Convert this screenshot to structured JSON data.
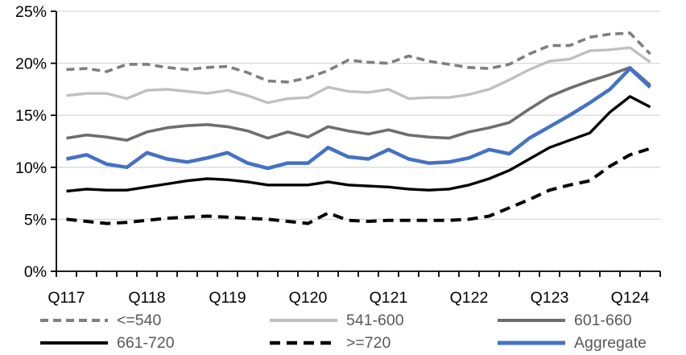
{
  "chart_data": {
    "type": "line",
    "title": "",
    "x_axis": {
      "tick_labels": [
        "Q117",
        "Q118",
        "Q119",
        "Q120",
        "Q121",
        "Q122",
        "Q123",
        "Q124"
      ],
      "label_every": 4,
      "minor_ticks_per_point": 1
    },
    "y_axis": {
      "min": 0,
      "max": 25,
      "step": 5,
      "tick_labels": [
        "0%",
        "5%",
        "10%",
        "15%",
        "20%",
        "25%"
      ],
      "format": "percent"
    },
    "grid": true,
    "legend_position": "bottom",
    "colors": {
      "gridline": "#D9D9D9",
      "axis": "#000000",
      "axis_text": "#000000",
      "legend_text": "#595959",
      "accent_blue": "#4472C4"
    },
    "series": [
      {
        "name": "<=540",
        "color": "#7F7F7F",
        "style": "dashed",
        "width": 3.6,
        "values": [
          19.4,
          19.5,
          19.2,
          19.9,
          19.9,
          19.6,
          19.4,
          19.6,
          19.7,
          19.1,
          18.3,
          18.2,
          18.6,
          19.3,
          20.3,
          20.1,
          20.0,
          20.7,
          20.2,
          19.9,
          19.6,
          19.5,
          19.9,
          20.9,
          21.7,
          21.7,
          22.5,
          22.8,
          22.9,
          20.9
        ]
      },
      {
        "name": "541-600",
        "color": "#C0C0C0",
        "style": "solid",
        "width": 3.4,
        "values": [
          16.9,
          17.1,
          17.1,
          16.6,
          17.4,
          17.5,
          17.3,
          17.1,
          17.4,
          16.9,
          16.2,
          16.6,
          16.7,
          17.7,
          17.3,
          17.2,
          17.5,
          16.6,
          16.7,
          16.7,
          17.0,
          17.5,
          18.4,
          19.4,
          20.2,
          20.4,
          21.2,
          21.3,
          21.5,
          20.1
        ]
      },
      {
        "name": "601-660",
        "color": "#6E6E6E",
        "style": "solid",
        "width": 3.6,
        "values": [
          12.8,
          13.1,
          12.9,
          12.6,
          13.4,
          13.8,
          14.0,
          14.1,
          13.9,
          13.5,
          12.8,
          13.4,
          12.9,
          13.9,
          13.5,
          13.2,
          13.6,
          13.1,
          12.9,
          12.8,
          13.4,
          13.8,
          14.3,
          15.6,
          16.8,
          17.6,
          18.3,
          18.9,
          19.6,
          17.9
        ]
      },
      {
        "name": "661-720",
        "color": "#000000",
        "style": "solid",
        "width": 3.4,
        "values": [
          7.7,
          7.9,
          7.8,
          7.8,
          8.1,
          8.4,
          8.7,
          8.9,
          8.8,
          8.6,
          8.3,
          8.3,
          8.3,
          8.6,
          8.3,
          8.2,
          8.1,
          7.9,
          7.8,
          7.9,
          8.3,
          8.9,
          9.7,
          10.8,
          11.9,
          12.6,
          13.3,
          15.3,
          16.8,
          15.8
        ]
      },
      {
        "name": ">=720",
        "color": "#000000",
        "style": "dashed",
        "width": 4.0,
        "values": [
          5.0,
          4.8,
          4.6,
          4.7,
          4.9,
          5.1,
          5.2,
          5.3,
          5.2,
          5.1,
          5.0,
          4.8,
          4.6,
          5.6,
          4.9,
          4.8,
          4.9,
          4.9,
          4.9,
          4.9,
          5.0,
          5.3,
          6.1,
          6.9,
          7.8,
          8.3,
          8.7,
          10.1,
          11.2,
          11.8
        ]
      },
      {
        "name": "Aggregate",
        "color": "#4472C4",
        "style": "solid",
        "width": 4.5,
        "values": [
          10.8,
          11.2,
          10.3,
          10.0,
          11.4,
          10.8,
          10.5,
          10.9,
          11.4,
          10.4,
          9.9,
          10.4,
          10.4,
          11.9,
          11.0,
          10.8,
          11.7,
          10.8,
          10.4,
          10.5,
          10.9,
          11.7,
          11.3,
          12.8,
          13.9,
          15.0,
          16.2,
          17.5,
          19.5,
          17.7
        ]
      }
    ]
  },
  "legend": {
    "items": [
      "<=540",
      "541-600",
      "601-660",
      "661-720",
      ">=720",
      "Aggregate"
    ]
  }
}
